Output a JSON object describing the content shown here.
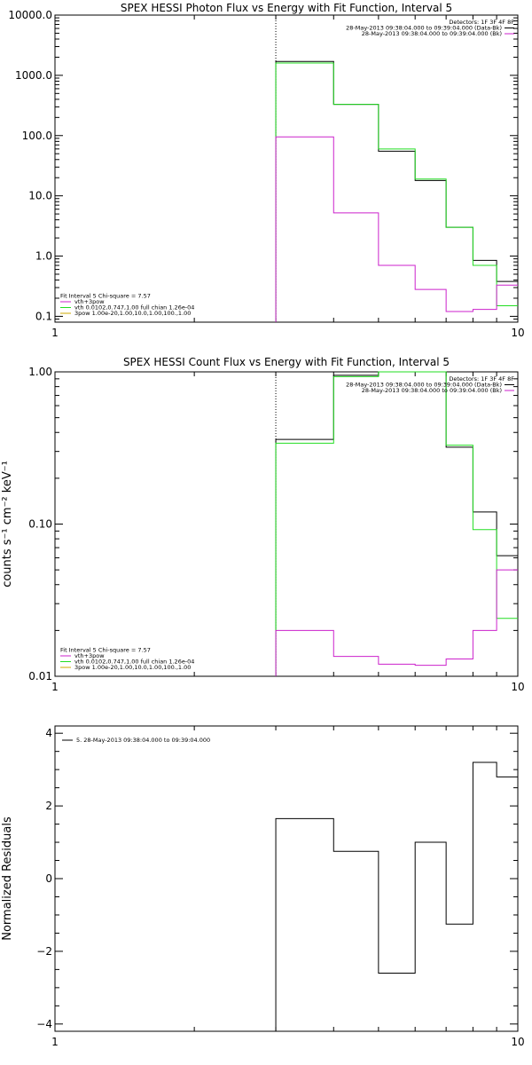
{
  "chart_data": [
    {
      "type": "line",
      "title": "SPEX HESSI Photon Flux vs Energy with Fit Function, Interval 5",
      "xlabel": "",
      "ylabel": "",
      "xscale": "log",
      "yscale": "log",
      "xlim": [
        1,
        10
      ],
      "ylim": [
        0.08,
        10000
      ],
      "x_ticks": [
        1,
        10
      ],
      "x_tick_labels": [
        "1",
        "10"
      ],
      "y_ticks": [
        0.1,
        1,
        10,
        100,
        1000,
        10000
      ],
      "y_tick_labels": [
        "0.1",
        "1.0",
        "10.0",
        "100.0",
        "1000.0",
        "10000.0"
      ],
      "marker_x": 3,
      "legend_top_right": [
        "Detectors: 1F 3F 4F 8F",
        "28-May-2013 09:38:04.000 to 09:39:04.000 (Data-Bk)",
        "28-May-2013 09:38:04.000 to 09:39:04.000 (Bk)"
      ],
      "legend_bottom_left": [
        "Fit Interval 5   Chi-square = 7.57",
        "vth+3pow",
        "vth 0.0102,0.747,1.00  full chian 1.26e-04",
        "3pow 1.00e-20,1.00,10.0,1.00,100.,1.00"
      ],
      "bin_edges": [
        3,
        4,
        5,
        6,
        7,
        8,
        9,
        10
      ],
      "series": [
        {
          "name": "Data-Bk",
          "color": "#000000",
          "values": [
            1700,
            330,
            55,
            18,
            3.0,
            0.85,
            0.38
          ]
        },
        {
          "name": "vth+3pow",
          "color": "#22dd22",
          "values": [
            1600,
            330,
            60,
            19,
            3.0,
            0.7,
            0.15
          ]
        },
        {
          "name": "Bk",
          "color": "#cc22cc",
          "values": [
            95,
            5.2,
            0.7,
            0.28,
            0.12,
            0.13,
            0.33
          ]
        }
      ],
      "grid": false
    },
    {
      "type": "line",
      "title": "SPEX HESSI Count Flux vs Energy with Fit Function, Interval 5",
      "xlabel": "",
      "ylabel": "counts s⁻¹ cm⁻² keV⁻¹",
      "xscale": "log",
      "yscale": "log",
      "xlim": [
        1,
        10
      ],
      "ylim": [
        0.01,
        1.0
      ],
      "x_ticks": [
        1,
        10
      ],
      "x_tick_labels": [
        "1",
        "10"
      ],
      "y_ticks": [
        0.01,
        0.1,
        1.0
      ],
      "y_tick_labels": [
        "0.01",
        "0.10",
        "1.00"
      ],
      "marker_x": 3,
      "legend_top_right": [
        "Detectors: 1F 3F 4F 8F",
        "28-May-2013 09:38:04.000 to 09:39:04.000 (Data-Bk)",
        "28-May-2013 09:38:04.000 to 09:39:04.000 (Bk)"
      ],
      "legend_bottom_left": [
        "Fit Interval 5   Chi-square = 7.57",
        "vth+3pow",
        "vth 0.0102,0.747,1.00  full chian 1.26e-04",
        "3pow 1.00e-20,1.00,10.0,1.00,100.,1.00"
      ],
      "bin_edges": [
        3,
        4,
        5,
        6,
        7,
        8,
        9,
        10
      ],
      "series": [
        {
          "name": "Data-Bk",
          "color": "#000000",
          "values": [
            0.36,
            0.95,
            1.0,
            1.0,
            0.32,
            0.12,
            0.062
          ]
        },
        {
          "name": "vth+3pow",
          "color": "#22dd22",
          "values": [
            0.34,
            0.93,
            1.0,
            1.0,
            0.33,
            0.092,
            0.024
          ]
        },
        {
          "name": "Bk",
          "color": "#cc22cc",
          "values": [
            0.02,
            0.0135,
            0.012,
            0.0118,
            0.013,
            0.02,
            0.05
          ]
        }
      ],
      "grid": false
    },
    {
      "type": "line",
      "title": "",
      "xlabel": "",
      "ylabel": "Normalized Residuals",
      "xscale": "log",
      "yscale": "linear",
      "xlim": [
        1,
        10
      ],
      "ylim": [
        -4.2,
        4.2
      ],
      "x_ticks": [
        1,
        10
      ],
      "x_tick_labels": [
        "1",
        "10"
      ],
      "y_ticks": [
        -4,
        -2,
        0,
        2,
        4
      ],
      "y_tick_labels": [
        "−4",
        "−2",
        "0",
        "2",
        "4"
      ],
      "legend_top_left": [
        "5. 28-May-2013 09:38:04.000 to 09:39:04.000"
      ],
      "bin_edges": [
        3,
        4,
        5,
        6,
        7,
        8,
        9,
        10
      ],
      "series": [
        {
          "name": "5. 28-May-2013 09:38:04.000 to 09:39:04.000",
          "color": "#000000",
          "values": [
            1.65,
            0.75,
            -2.6,
            1.0,
            -1.25,
            3.2,
            2.8
          ]
        }
      ],
      "grid": false
    }
  ]
}
